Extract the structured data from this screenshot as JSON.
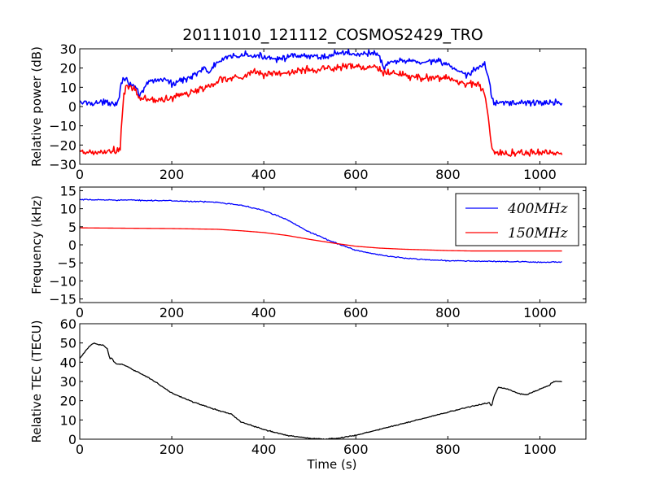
{
  "figure_title": "20111010_121112_COSMOS2429_TRO",
  "colors": {
    "blue": "#0000ff",
    "red": "#ff0000",
    "black": "#000000"
  },
  "chart_data": [
    {
      "type": "line",
      "ylabel": "Relative power (dB)",
      "xlabel": "",
      "xlim": [
        0,
        1100
      ],
      "ylim": [
        -30,
        30
      ],
      "xticks": [
        "0",
        "200",
        "400",
        "600",
        "800",
        "1000"
      ],
      "yticks": [
        "−30",
        "−20",
        "−10",
        "0",
        "10",
        "20",
        "30"
      ],
      "series": [
        {
          "color": "blue",
          "noise": 1.6,
          "x": [
            0,
            40,
            80,
            85,
            90,
            95,
            100,
            110,
            120,
            130,
            150,
            170,
            190,
            200,
            210,
            230,
            250,
            270,
            280,
            290,
            300,
            330,
            360,
            380,
            400,
            430,
            460,
            500,
            540,
            560,
            580,
            600,
            620,
            650,
            660,
            670,
            700,
            740,
            780,
            800,
            820,
            840,
            860,
            870,
            880,
            890,
            895,
            900,
            950,
            1000,
            1048
          ],
          "y": [
            2,
            2,
            2,
            4,
            12,
            16,
            14,
            12,
            10,
            5,
            13,
            14,
            14,
            11,
            13,
            14,
            17,
            20,
            17,
            21,
            23,
            26,
            27,
            26,
            26,
            25,
            26,
            26,
            26,
            28,
            28,
            27,
            28,
            27,
            20,
            22,
            24,
            23,
            24,
            22,
            18,
            16,
            19,
            21,
            22,
            14,
            5,
            2,
            2,
            2,
            2
          ]
        },
        {
          "color": "red",
          "noise": 2.0,
          "x": [
            0,
            40,
            80,
            88,
            92,
            96,
            100,
            110,
            120,
            130,
            150,
            170,
            190,
            200,
            210,
            230,
            250,
            270,
            290,
            300,
            330,
            360,
            380,
            400,
            430,
            460,
            500,
            540,
            560,
            580,
            600,
            620,
            650,
            660,
            670,
            700,
            740,
            780,
            800,
            820,
            840,
            860,
            870,
            880,
            885,
            890,
            895,
            900,
            950,
            1000,
            1048
          ],
          "y": [
            -24,
            -24,
            -23,
            -22,
            -5,
            6,
            9,
            10,
            9,
            4,
            4,
            3,
            4,
            4,
            6,
            6,
            8,
            10,
            11,
            14,
            15,
            16,
            18,
            17,
            17,
            18,
            19,
            20,
            20,
            21,
            21,
            20,
            20,
            17,
            18,
            16,
            15,
            15,
            15,
            13,
            12,
            12,
            10,
            7,
            0,
            -12,
            -20,
            -24,
            -24,
            -24,
            -24
          ]
        }
      ]
    },
    {
      "type": "line",
      "ylabel": "Frequency (kHz)",
      "xlabel": "",
      "xlim": [
        0,
        1100
      ],
      "ylim": [
        -16,
        16
      ],
      "xticks": [
        "0",
        "200",
        "400",
        "600",
        "800",
        "1000"
      ],
      "yticks": [
        "−15",
        "−10",
        "−5",
        "0",
        "5",
        "10",
        "15"
      ],
      "legend": {
        "placement": "top-right"
      },
      "series": [
        {
          "name": "400MHz",
          "color": "blue",
          "noise": 0.15,
          "x": [
            0,
            100,
            200,
            300,
            350,
            400,
            450,
            500,
            550,
            600,
            650,
            700,
            750,
            800,
            850,
            900,
            950,
            1000,
            1048
          ],
          "y": [
            12.5,
            12.4,
            12.2,
            11.8,
            11,
            9.5,
            7,
            3.5,
            0.8,
            -1.5,
            -2.8,
            -3.6,
            -4.1,
            -4.4,
            -4.5,
            -4.6,
            -4.7,
            -4.8,
            -4.8
          ]
        },
        {
          "name": "150MHz",
          "color": "red",
          "noise": 0,
          "x": [
            0,
            100,
            200,
            300,
            350,
            400,
            450,
            500,
            550,
            600,
            650,
            700,
            750,
            800,
            850,
            900,
            950,
            1000,
            1048
          ],
          "y": [
            4.7,
            4.6,
            4.5,
            4.3,
            3.9,
            3.4,
            2.6,
            1.5,
            0.5,
            -0.4,
            -0.9,
            -1.2,
            -1.4,
            -1.6,
            -1.7,
            -1.7,
            -1.7,
            -1.7,
            -1.7
          ]
        }
      ]
    },
    {
      "type": "line",
      "ylabel": "Relative TEC (TECU)",
      "xlabel": "Time (s)",
      "xlim": [
        0,
        1100
      ],
      "ylim": [
        0,
        60
      ],
      "xticks": [
        "0",
        "200",
        "400",
        "600",
        "800",
        "1000"
      ],
      "yticks": [
        "0",
        "10",
        "20",
        "30",
        "40",
        "50",
        "60"
      ],
      "series": [
        {
          "color": "black",
          "noise": 0.25,
          "x": [
            0,
            10,
            20,
            30,
            40,
            50,
            60,
            65,
            70,
            75,
            80,
            90,
            100,
            150,
            200,
            250,
            300,
            330,
            350,
            400,
            450,
            500,
            530,
            560,
            600,
            650,
            700,
            750,
            800,
            850,
            890,
            895,
            900,
            910,
            930,
            950,
            970,
            1000,
            1020,
            1030,
            1048
          ],
          "y": [
            42,
            45,
            48,
            50,
            49,
            49,
            47,
            42,
            42,
            40,
            39,
            39,
            38,
            32,
            24,
            19,
            15,
            13,
            9,
            5,
            2,
            0.5,
            0,
            0.5,
            2,
            5,
            8,
            11,
            14,
            17,
            19,
            17,
            22,
            27,
            26,
            24,
            23,
            26,
            28,
            30,
            30
          ]
        }
      ]
    }
  ]
}
